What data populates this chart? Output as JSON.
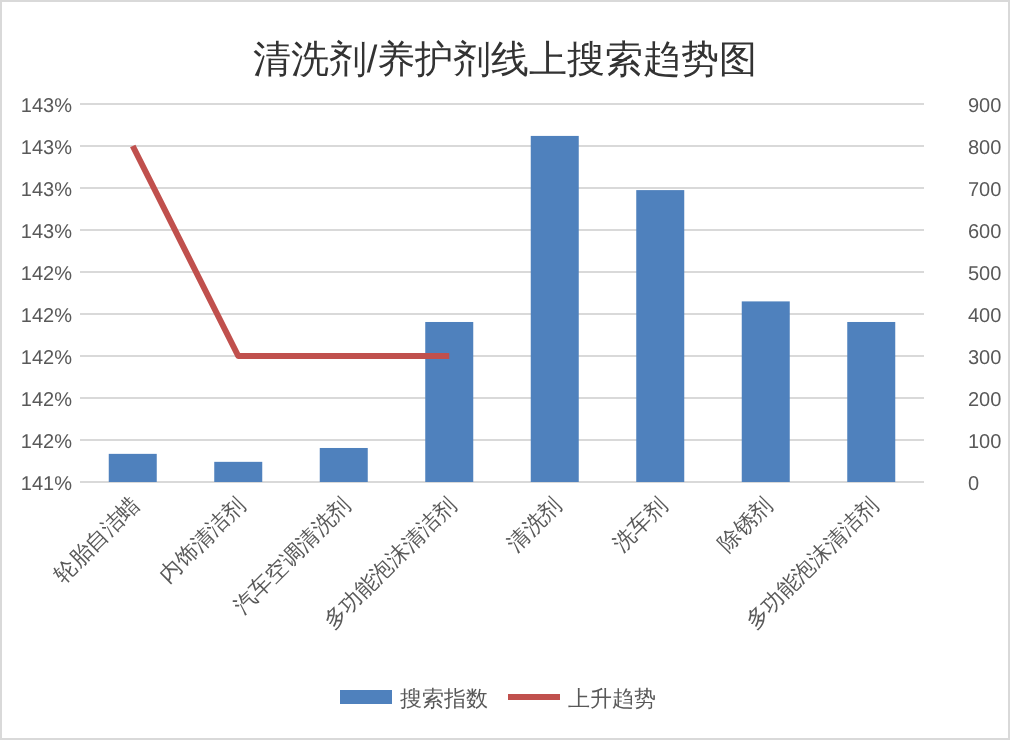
{
  "chart_data": {
    "type": "bar",
    "title": "清洗剂/养护剂线上搜索趋势图",
    "categories": [
      "轮胎自洁蜡",
      "内饰清洁剂",
      "汽车空调清洗剂",
      "多功能泡沫清洁剂",
      "清洗剂",
      "洗车剂",
      "除锈剂",
      "多功能泡沫清洁剂"
    ],
    "series": [
      {
        "name": "搜索指数",
        "axis": "y2",
        "color": "#4f81bd",
        "values": [
          67,
          48,
          81,
          381,
          824,
          695,
          430,
          381
        ]
      },
      {
        "name": "上升趋势",
        "type": "line",
        "color": "#c0504d",
        "values": [
          143.0,
          142.0,
          142.0,
          142.0,
          null,
          null,
          null,
          null
        ]
      }
    ],
    "ylim": [
      141.4,
      143.2
    ],
    "yticks": [
      {
        "value": 141.4,
        "label": "141%"
      },
      {
        "value": 141.6,
        "label": "142%"
      },
      {
        "value": 141.8,
        "label": "142%"
      },
      {
        "value": 142.0,
        "label": "142%"
      },
      {
        "value": 142.2,
        "label": "142%"
      },
      {
        "value": 142.4,
        "label": "142%"
      },
      {
        "value": 142.6,
        "label": "143%"
      },
      {
        "value": 142.8,
        "label": "143%"
      },
      {
        "value": 143.0,
        "label": "143%"
      },
      {
        "value": 143.2,
        "label": "143%"
      }
    ],
    "y2lim": [
      0,
      900
    ],
    "y2ticks": [
      0,
      100,
      200,
      300,
      400,
      500,
      600,
      700,
      800,
      900
    ],
    "grid": "y",
    "legend": "bottom",
    "marker": "none",
    "line_style": "solid"
  }
}
